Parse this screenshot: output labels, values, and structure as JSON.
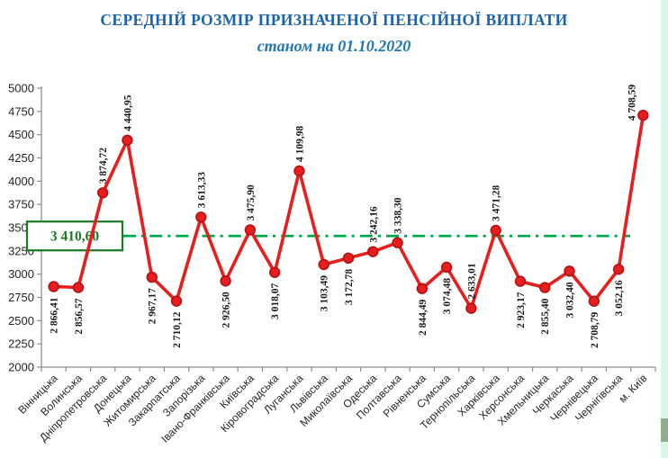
{
  "page": {
    "title": "СЕРЕДНІЙ РОЗМІР ПРИЗНАЧЕНОЇ ПЕНСІЙНОЇ ВИПЛАТИ",
    "subtitle": "станом на 01.10.2020"
  },
  "colors": {
    "title_blue": "#1b64ad",
    "subtitle_blue": "#2077b2",
    "series_red": "#e81e1e",
    "marker_border_red": "#b01313",
    "average_green": "#00ab50",
    "average_box_green": "#1a7a24",
    "axis_grey": "#8c8c8c",
    "label_black": "#1a1a1a",
    "edge_strip_mint": "#d9f6e6",
    "edge_block_sage": "#8fac8d"
  },
  "chart_data": {
    "type": "line",
    "title": "СЕРЕДНІЙ РОЗМІР ПРИЗНАЧЕНОЇ ПЕНСІЙНОЇ ВИПЛАТИ",
    "subtitle": "станом на 01.10.2020",
    "categories": [
      "Вінницька",
      "Волинська",
      "Дніпропетровська",
      "Донецька",
      "Житомирська",
      "Закарпатська",
      "Запорізька",
      "Івано-Франківська",
      "Київська",
      "Кіровоградська",
      "Луганська",
      "Львівська",
      "Миколаївська",
      "Одеська",
      "Полтавська",
      "Рівненська",
      "Сумська",
      "Тернопільська",
      "Харківська",
      "Херсонська",
      "Хмельницька",
      "Черкаська",
      "Чернівецька",
      "Чернігівська",
      "м. Київ"
    ],
    "values": [
      2866.41,
      2856.57,
      3874.72,
      4440.95,
      2967.17,
      2710.12,
      3613.33,
      2926.5,
      3475.9,
      3018.07,
      4109.98,
      3103.49,
      3172.78,
      3242.16,
      3338.3,
      2844.49,
      3074.48,
      2633.01,
      3471.28,
      2923.17,
      2855.4,
      3032.4,
      2708.79,
      3052.16,
      4708.59
    ],
    "value_labels": [
      "2 866,41",
      "2 856,57",
      "3 874,72",
      "4 440,95",
      "2 967,17",
      "2 710,12",
      "3 613,33",
      "2 926,50",
      "3 475,90",
      "3 018,07",
      "4 109,98",
      "3 103,49",
      "3 172,78",
      "3 242,16",
      "3 338,30",
      "2 844,49",
      "3 074,48",
      "2 633,01",
      "3 471,28",
      "2 923,17",
      "2 855,40",
      "3 032,40",
      "2 708,79",
      "3 052,16",
      "4 708,59"
    ],
    "label_position": [
      "below",
      "below",
      "above",
      "above",
      "below",
      "below",
      "above",
      "below",
      "above",
      "below",
      "above",
      "below",
      "below",
      "above",
      "above",
      "below",
      "below",
      "above",
      "above",
      "below",
      "below",
      "below",
      "below",
      "below",
      "above"
    ],
    "average": {
      "value": 3410.6,
      "label": "3 410,60"
    },
    "ylim": [
      2000,
      5000
    ],
    "ytick_step": 250,
    "ytick_labels": [
      "2000",
      "2250",
      "2500",
      "2750",
      "3000",
      "3250",
      "3500",
      "3750",
      "4000",
      "4250",
      "4500",
      "4750",
      "5000"
    ],
    "xlabel": "",
    "ylabel": "",
    "grid": false,
    "legend": "none",
    "average_line_style": "dash-dot"
  }
}
